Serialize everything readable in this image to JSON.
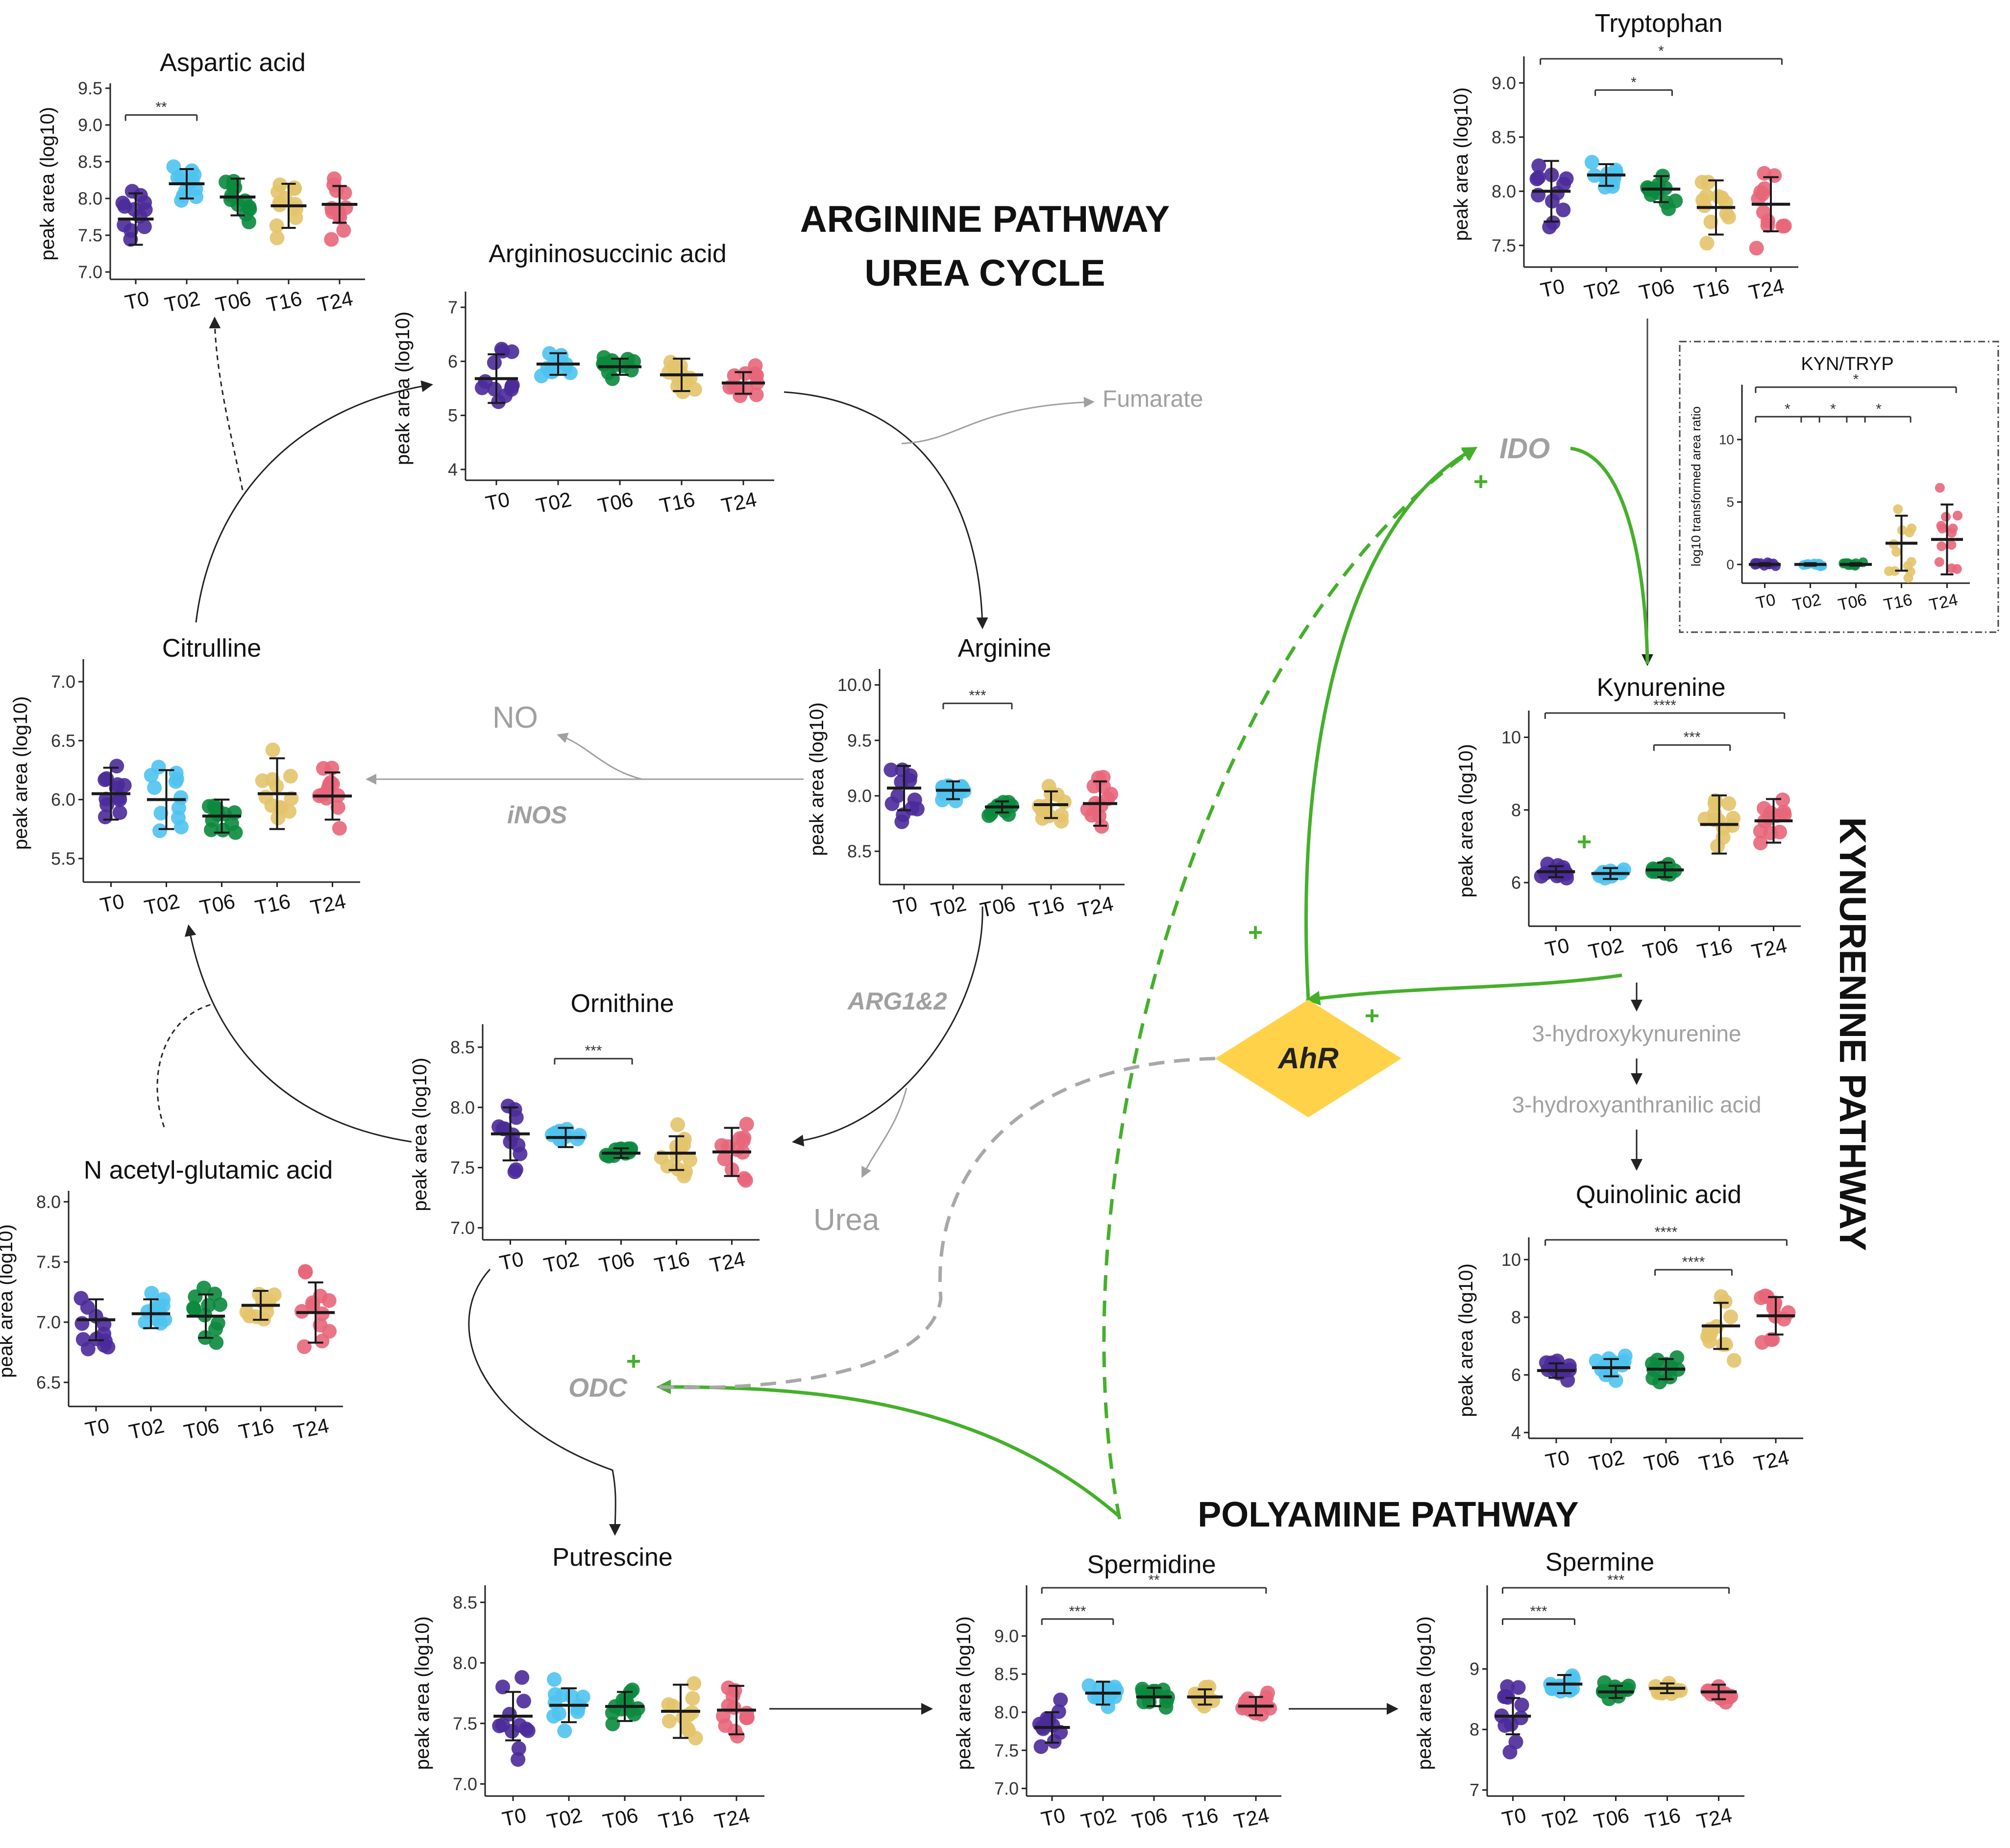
{
  "colors": {
    "T0": "#4b2a9a",
    "T02": "#4fc3f0",
    "T06": "#0b8a3e",
    "T16": "#e3c46b",
    "T24": "#e8667a",
    "green": "#44b02a",
    "grey": "#a0a0a0",
    "ahr": "#ffd24a",
    "dark": "#222222"
  },
  "headings": {
    "arginine": "ARGININE PATHWAY",
    "urea": "UREA CYCLE",
    "kynurenine": "KYNURENINE PATHWAY",
    "polyamine": "POLYAMINE PATHWAY"
  },
  "labels": {
    "fumarate": "Fumarate",
    "no": "NO",
    "inos": "iNOS",
    "arg12": "ARG1&2",
    "urea": "Urea",
    "odc": "ODC",
    "ido": "IDO",
    "ahr": "AhR",
    "hydroxykyn": "3-hydroxykynurenine",
    "hydroxyanth": "3-hydroxyanthranilic acid",
    "plus": "+"
  },
  "chart_data": [
    {
      "id": "aspartic",
      "type": "scatter",
      "title": "Aspartic acid",
      "ylabel": "peak area (log10)",
      "categories": [
        "T0",
        "T02",
        "T06",
        "T16",
        "T24"
      ],
      "ylim": [
        6.9,
        9.5
      ],
      "yticks": [
        "7.0",
        "7.5",
        "8.0",
        "8.5",
        "9.0",
        "9.5"
      ],
      "means": [
        7.72,
        8.2,
        8.02,
        7.9,
        7.92
      ],
      "sd": [
        0.35,
        0.2,
        0.25,
        0.3,
        0.25
      ],
      "brackets": [
        {
          "from": 0,
          "to": 1,
          "label": "**"
        }
      ]
    },
    {
      "id": "argsucc",
      "type": "scatter",
      "title": "Argininosuccinic acid",
      "ylabel": "peak area (log10)",
      "categories": [
        "T0",
        "T02",
        "T06",
        "T16",
        "T24"
      ],
      "ylim": [
        3.8,
        7.2
      ],
      "yticks": [
        "4",
        "5",
        "6",
        "7"
      ],
      "means": [
        5.68,
        5.95,
        5.9,
        5.75,
        5.6
      ],
      "sd": [
        0.45,
        0.2,
        0.15,
        0.3,
        0.2
      ],
      "brackets": []
    },
    {
      "id": "tryptophan",
      "type": "scatter",
      "title": "Tryptophan",
      "ylabel": "peak area (log10)",
      "categories": [
        "T0",
        "T02",
        "T06",
        "T16",
        "T24"
      ],
      "ylim": [
        7.3,
        9.2
      ],
      "yticks": [
        "7.5",
        "8.0",
        "8.5",
        "9.0"
      ],
      "means": [
        8.0,
        8.15,
        8.02,
        7.85,
        7.88
      ],
      "sd": [
        0.28,
        0.1,
        0.12,
        0.25,
        0.25
      ],
      "brackets": [
        {
          "from": 1,
          "to": 2,
          "label": "*"
        },
        {
          "from": 0,
          "to": 4,
          "label": "*"
        }
      ]
    },
    {
      "id": "kyntryp",
      "type": "scatter",
      "title": "KYN/TRYP",
      "ylabel": "log10 transformed area ratio",
      "categories": [
        "T0",
        "T02",
        "T06",
        "T16",
        "T24"
      ],
      "ylim": [
        -1.5,
        14
      ],
      "yticks": [
        "0",
        "5",
        "10"
      ],
      "means": [
        0.0,
        0.0,
        0.0,
        1.7,
        2.0
      ],
      "sd": [
        0.1,
        0.1,
        0.1,
        2.2,
        2.8
      ],
      "brackets": [
        {
          "from": 0,
          "to": 1,
          "label": "*"
        },
        {
          "from": 1,
          "to": 2,
          "label": "*"
        },
        {
          "from": 2,
          "to": 3,
          "label": "*"
        },
        {
          "from": 0,
          "to": 4,
          "label": "*"
        }
      ]
    },
    {
      "id": "citrulline",
      "type": "scatter",
      "title": "Citrulline",
      "ylabel": "peak area (log10)",
      "categories": [
        "T0",
        "T02",
        "T06",
        "T16",
        "T24"
      ],
      "ylim": [
        5.3,
        7.15
      ],
      "yticks": [
        "5.5",
        "6.0",
        "6.5",
        "7.0"
      ],
      "means": [
        6.05,
        6.0,
        5.86,
        6.05,
        6.03
      ],
      "sd": [
        0.22,
        0.25,
        0.14,
        0.3,
        0.2
      ],
      "brackets": []
    },
    {
      "id": "arginine",
      "type": "scatter",
      "title": "Arginine",
      "ylabel": "peak area (log10)",
      "categories": [
        "T0",
        "T02",
        "T06",
        "T16",
        "T24"
      ],
      "ylim": [
        8.2,
        10.1
      ],
      "yticks": [
        "8.5",
        "9.0",
        "9.5",
        "10.0"
      ],
      "means": [
        9.07,
        9.05,
        8.9,
        8.92,
        8.93
      ],
      "sd": [
        0.2,
        0.08,
        0.05,
        0.12,
        0.2
      ],
      "brackets": [
        {
          "from": 1,
          "to": 2,
          "label": "***"
        }
      ]
    },
    {
      "id": "kynurenine",
      "type": "scatter",
      "title": "Kynurenine",
      "ylabel": "peak area (log10)",
      "categories": [
        "T0",
        "T02",
        "T06",
        "T16",
        "T24"
      ],
      "ylim": [
        4.8,
        10.6
      ],
      "yticks": [
        "6",
        "8",
        "10"
      ],
      "means": [
        6.3,
        6.25,
        6.35,
        7.6,
        7.7
      ],
      "sd": [
        0.15,
        0.15,
        0.2,
        0.8,
        0.6
      ],
      "brackets": [
        {
          "from": 2,
          "to": 3,
          "label": "***"
        },
        {
          "from": 0,
          "to": 4,
          "label": "****"
        }
      ]
    },
    {
      "id": "ornithine",
      "type": "scatter",
      "title": "Ornithine",
      "ylabel": "peak area (log10)",
      "categories": [
        "T0",
        "T02",
        "T06",
        "T16",
        "T24"
      ],
      "ylim": [
        6.9,
        8.65
      ],
      "yticks": [
        "7.0",
        "7.5",
        "8.0",
        "8.5"
      ],
      "means": [
        7.78,
        7.75,
        7.62,
        7.62,
        7.63
      ],
      "sd": [
        0.22,
        0.08,
        0.04,
        0.14,
        0.2
      ],
      "brackets": [
        {
          "from": 1,
          "to": 2,
          "label": "***"
        }
      ]
    },
    {
      "id": "nag",
      "type": "scatter",
      "title": "N acetyl-glutamic acid",
      "ylabel": "peak area (log10)",
      "categories": [
        "T0",
        "T02",
        "T06",
        "T16",
        "T24"
      ],
      "ylim": [
        6.3,
        8.05
      ],
      "yticks": [
        "6.5",
        "7.0",
        "7.5",
        "8.0"
      ],
      "means": [
        7.02,
        7.07,
        7.05,
        7.14,
        7.08
      ],
      "sd": [
        0.17,
        0.12,
        0.18,
        0.12,
        0.25
      ],
      "brackets": []
    },
    {
      "id": "quinolinic",
      "type": "scatter",
      "title": "Quinolinic acid",
      "ylabel": "peak area (log10)",
      "categories": [
        "T0",
        "T02",
        "T06",
        "T16",
        "T24"
      ],
      "ylim": [
        3.8,
        10.6
      ],
      "yticks": [
        "4",
        "6",
        "8",
        "10"
      ],
      "means": [
        6.15,
        6.25,
        6.2,
        7.7,
        8.05
      ],
      "sd": [
        0.25,
        0.3,
        0.35,
        0.8,
        0.65
      ],
      "brackets": [
        {
          "from": 2,
          "to": 3,
          "label": "****"
        },
        {
          "from": 0,
          "to": 4,
          "label": "****"
        }
      ]
    },
    {
      "id": "putrescine",
      "type": "scatter",
      "title": "Putrescine",
      "ylabel": "peak area (log10)",
      "categories": [
        "T0",
        "T02",
        "T06",
        "T16",
        "T24"
      ],
      "ylim": [
        6.9,
        8.6
      ],
      "yticks": [
        "7.0",
        "7.5",
        "8.0",
        "8.5"
      ],
      "means": [
        7.56,
        7.65,
        7.64,
        7.6,
        7.61
      ],
      "sd": [
        0.2,
        0.14,
        0.12,
        0.22,
        0.2
      ],
      "brackets": []
    },
    {
      "id": "spermidine",
      "type": "scatter",
      "title": "Spermidine",
      "ylabel": "peak area (log10)",
      "categories": [
        "T0",
        "T02",
        "T06",
        "T16",
        "T24"
      ],
      "ylim": [
        6.9,
        9.6
      ],
      "yticks": [
        "7.0",
        "7.5",
        "8.0",
        "8.5",
        "9.0"
      ],
      "means": [
        7.8,
        8.25,
        8.2,
        8.2,
        8.08
      ],
      "sd": [
        0.2,
        0.15,
        0.12,
        0.1,
        0.12
      ],
      "brackets": [
        {
          "from": 0,
          "to": 1,
          "label": "***"
        },
        {
          "from": 0,
          "to": 4,
          "label": "**"
        }
      ]
    },
    {
      "id": "spermine",
      "type": "scatter",
      "title": "Spermine",
      "ylabel": "peak area (log10)",
      "categories": [
        "T0",
        "T02",
        "T06",
        "T16",
        "T24"
      ],
      "ylim": [
        6.9,
        10.3
      ],
      "yticks": [
        "7",
        "8",
        "9"
      ],
      "means": [
        8.22,
        8.75,
        8.62,
        8.68,
        8.62
      ],
      "sd": [
        0.3,
        0.15,
        0.1,
        0.08,
        0.12
      ],
      "brackets": [
        {
          "from": 0,
          "to": 1,
          "label": "***"
        },
        {
          "from": 0,
          "to": 4,
          "label": "***"
        }
      ]
    }
  ]
}
